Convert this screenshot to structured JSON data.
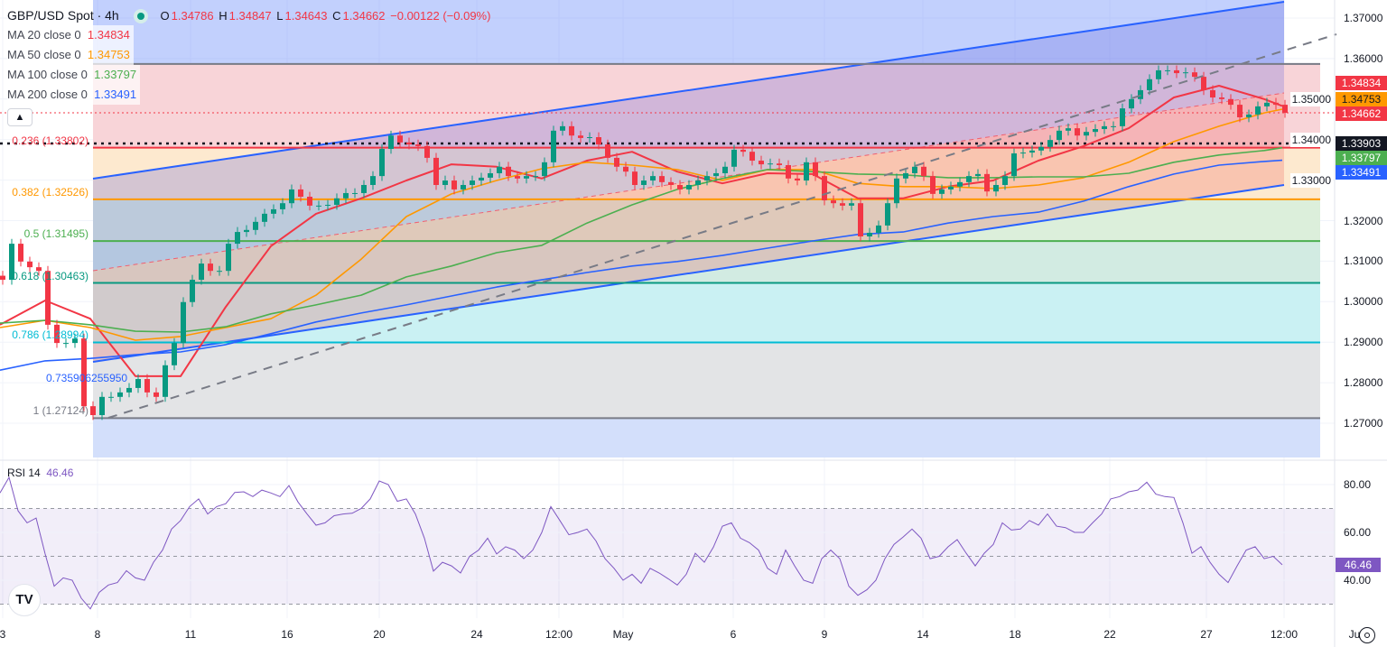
{
  "header": {
    "symbol": "GBP/USD Spot · 4h",
    "status_color": "#089981",
    "open_label": "O",
    "open": "1.34786",
    "high_label": "H",
    "high": "1.34847",
    "low_label": "L",
    "low": "1.34643",
    "close_label": "C",
    "close": "1.34662",
    "change": "−0.00122 (−0.09%)",
    "collapse_icon": "chevron-up-icon"
  },
  "indicators": [
    {
      "label": "MA 20 close 0",
      "value": "1.34834",
      "color": "#f23645"
    },
    {
      "label": "MA 50 close 0",
      "value": "1.34753",
      "color": "#ff9800"
    },
    {
      "label": "MA 100 close 0",
      "value": "1.33797",
      "color": "#4caf50"
    },
    {
      "label": "MA 200 close 0",
      "value": "1.33491",
      "color": "#2962ff"
    }
  ],
  "fib_levels": [
    {
      "ratio": 0,
      "price": 1.35866,
      "label": "",
      "color": "#787b86",
      "fill": "#f8d4d8"
    },
    {
      "ratio": 0.236,
      "price": 1.33802,
      "label": "0.236 (1.33802)",
      "color": "#f23645",
      "fill": "#fde9cf"
    },
    {
      "ratio": 0.382,
      "price": 1.32526,
      "label": "0.382 (1.32526)",
      "color": "#ff9800",
      "fill": "#dcefdb"
    },
    {
      "ratio": 0.5,
      "price": 1.31495,
      "label": "0.5 (1.31495)",
      "color": "#4caf50",
      "fill": "#d2ebe2"
    },
    {
      "ratio": 0.618,
      "price": 1.30463,
      "label": "0.618 (1.30463)",
      "color": "#089981",
      "fill": "#caf1f3"
    },
    {
      "ratio": 0.786,
      "price": 1.28994,
      "label": "0.786 (1.28994)",
      "color": "#00bcd4",
      "fill": "#e3e4e6"
    },
    {
      "ratio": 1,
      "price": 1.27124,
      "label": "1 (1.27124)",
      "color": "#787b86",
      "fill": "#d3dffb"
    }
  ],
  "fib_extra_label": {
    "text": "0.735906255950",
    "color": "#2962ff"
  },
  "colors": {
    "up": "#089981",
    "down": "#f23645",
    "rsi": "#7e57c2",
    "channel": "#2962ff"
  },
  "price_tags": [
    {
      "value": "1.34834",
      "price": 1.34834,
      "color": "#f23645",
      "text_color": "#ffffff"
    },
    {
      "value": "1.34753",
      "price": 1.34753,
      "color": "#ff9800",
      "text_color": "#131722"
    },
    {
      "value": "1.34662",
      "price": 1.34662,
      "color": "#f23645",
      "text_color": "#ffffff"
    },
    {
      "value": "1.33903",
      "price": 1.33903,
      "color": "#131722",
      "text_color": "#ffffff"
    },
    {
      "value": "1.33797",
      "price": 1.33797,
      "color": "#4caf50",
      "text_color": "#ffffff"
    },
    {
      "value": "1.33491",
      "price": 1.33491,
      "color": "#2962ff",
      "text_color": "#ffffff"
    }
  ],
  "rsi": {
    "label": "RSI 14",
    "value": "46.46",
    "ticks": [
      "80.00",
      "60.00",
      "40.00"
    ]
  },
  "chart_data": [
    {
      "type": "candlestick",
      "title": "GBP/USD Spot · 4h",
      "ylim": [
        1.2625,
        1.3745
      ],
      "y_ticks": [
        "1.37000",
        "1.36000",
        "1.35000",
        "1.34000",
        "1.33000",
        "1.32000",
        "1.31000",
        "1.30000",
        "1.29000",
        "1.28000",
        "1.27000"
      ],
      "x_ticks": [
        "3",
        "8",
        "11",
        "16",
        "20",
        "24",
        "12:00",
        "May",
        "6",
        "9",
        "14",
        "18",
        "22",
        "27",
        "12:00",
        "Ju"
      ],
      "grid": true,
      "close": [
        1.3054,
        1.3143,
        1.3099,
        1.3085,
        1.3076,
        1.2943,
        1.2898,
        1.2898,
        1.2909,
        1.2742,
        1.272,
        1.2765,
        1.2765,
        1.2776,
        1.2787,
        1.2809,
        1.2776,
        1.2765,
        1.2843,
        1.2898,
        1.2999,
        1.3054,
        1.3094,
        1.3076,
        1.3076,
        1.3143,
        1.3172,
        1.3177,
        1.3197,
        1.3217,
        1.3228,
        1.3243,
        1.3277,
        1.3259,
        1.3237,
        1.3237,
        1.3239,
        1.3255,
        1.3268,
        1.3268,
        1.3288,
        1.331,
        1.3377,
        1.341,
        1.3393,
        1.3388,
        1.3384,
        1.3355,
        1.3288,
        1.3299,
        1.3277,
        1.3288,
        1.3299,
        1.3306,
        1.3317,
        1.3333,
        1.331,
        1.3304,
        1.331,
        1.331,
        1.3344,
        1.3422,
        1.3433,
        1.341,
        1.3404,
        1.3406,
        1.3388,
        1.3355,
        1.3333,
        1.3321,
        1.3288,
        1.3299,
        1.331,
        1.3295,
        1.3288,
        1.3277,
        1.3288,
        1.3299,
        1.331,
        1.3317,
        1.3333,
        1.3375,
        1.337,
        1.3348,
        1.3339,
        1.3341,
        1.3337,
        1.3304,
        1.3299,
        1.3344,
        1.331,
        1.325,
        1.3243,
        1.3237,
        1.3243,
        1.3161,
        1.317,
        1.3188,
        1.3243,
        1.3304,
        1.3317,
        1.3333,
        1.331,
        1.3266,
        1.3277,
        1.3284,
        1.3295,
        1.331,
        1.3315,
        1.3272,
        1.3288,
        1.331,
        1.3366,
        1.3368,
        1.3373,
        1.3382,
        1.3399,
        1.3422,
        1.3428,
        1.341,
        1.3419,
        1.3426,
        1.3433,
        1.3433,
        1.3477,
        1.35,
        1.3522,
        1.3549,
        1.3571,
        1.3571,
        1.3564,
        1.3566,
        1.3555,
        1.3522,
        1.3504,
        1.35,
        1.3486,
        1.3455,
        1.3462,
        1.3482,
        1.3491,
        1.3486,
        1.3466
      ],
      "series": [
        {
          "name": "MA 20 close 0",
          "color": "#f23645",
          "values": [
            1.2943,
            1.3003,
            1.2958,
            1.2816,
            1.2816,
            1.2987,
            1.3137,
            1.3217,
            1.3255,
            1.3299,
            1.3339,
            1.3333,
            1.3304,
            1.3348,
            1.337,
            1.3321,
            1.3292,
            1.3317,
            1.3315,
            1.3255,
            1.3255,
            1.3284,
            1.3299,
            1.3348,
            1.3384,
            1.3428,
            1.3504,
            1.3533,
            1.35,
            1.3483
          ]
        },
        {
          "name": "MA 50 close 0",
          "color": "#ff9800",
          "values": [
            1.2936,
            1.2954,
            1.2936,
            1.2905,
            1.2914,
            1.2936,
            1.2958,
            1.3016,
            1.3105,
            1.321,
            1.3266,
            1.3299,
            1.3328,
            1.3344,
            1.3337,
            1.3326,
            1.3299,
            1.3326,
            1.3326,
            1.3292,
            1.3284,
            1.3284,
            1.3279,
            1.3288,
            1.3306,
            1.3344,
            1.3395,
            1.3433,
            1.3466,
            1.3475
          ]
        },
        {
          "name": "MA 100 close 0",
          "color": "#4caf50",
          "values": [
            1.2947,
            1.2954,
            1.2943,
            1.2927,
            1.2925,
            1.2938,
            1.297,
            1.2992,
            1.3016,
            1.3061,
            1.3088,
            1.3121,
            1.3139,
            1.3194,
            1.3239,
            1.3277,
            1.3304,
            1.3326,
            1.3321,
            1.3315,
            1.3313,
            1.3306,
            1.3306,
            1.3308,
            1.3308,
            1.3317,
            1.3344,
            1.3362,
            1.3373,
            1.338
          ]
        },
        {
          "name": "MA 200 close 0",
          "color": "#2962ff",
          "values": [
            1.2831,
            1.2854,
            1.286,
            1.2869,
            1.2876,
            1.2894,
            1.2921,
            1.295,
            1.2972,
            1.2992,
            1.3014,
            1.3036,
            1.3054,
            1.3072,
            1.3088,
            1.3099,
            1.3114,
            1.3132,
            1.315,
            1.3166,
            1.3172,
            1.3194,
            1.321,
            1.3221,
            1.3248,
            1.3284,
            1.3315,
            1.3337,
            1.3346,
            1.3349
          ]
        }
      ],
      "horizontal_lines": [
        {
          "price": 1.33903,
          "style": "dotted",
          "color": "#131722"
        },
        {
          "price": 1.34662,
          "style": "dotted",
          "color": "#f23645"
        }
      ]
    },
    {
      "type": "line",
      "title": "RSI 14",
      "ylim": [
        20,
        90
      ],
      "y_ticks": [
        "80.00",
        "60.00",
        "40.00"
      ],
      "bands": {
        "upper": 70,
        "middle": 50,
        "lower": 30
      },
      "series": [
        {
          "name": "RSI 14",
          "color": "#7e57c2",
          "values": [
            76.5,
            83,
            69,
            64,
            66,
            51,
            37.5,
            41,
            40,
            32.5,
            28,
            35,
            38,
            39,
            44,
            41,
            40,
            47.5,
            52.6,
            61.4,
            65,
            70.8,
            74,
            67.7,
            70.8,
            72,
            76.7,
            77,
            75,
            77.7,
            76.5,
            75,
            79.6,
            72.7,
            67.7,
            63,
            64,
            67,
            67.7,
            68,
            70,
            74,
            81.5,
            80,
            73,
            74,
            67.7,
            57.6,
            43.8,
            47.5,
            46,
            43,
            50,
            52.6,
            57.6,
            51,
            54,
            52.6,
            49,
            52.6,
            60,
            70.8,
            65,
            59,
            60,
            61.4,
            56.4,
            49,
            45,
            40,
            42.5,
            38.7,
            45,
            43,
            40.6,
            38,
            42.5,
            51.3,
            47.5,
            53.8,
            62.6,
            64,
            57.6,
            55.7,
            52.6,
            45,
            42.5,
            52.6,
            46,
            40,
            38.7,
            49,
            52.6,
            49,
            37.5,
            33.7,
            36,
            40,
            49,
            55,
            58,
            61.4,
            57.6,
            49,
            50,
            54,
            57,
            51.3,
            46,
            51.3,
            55,
            64,
            61,
            61.4,
            65,
            63,
            67.7,
            62.6,
            62,
            60,
            60,
            64,
            67.7,
            74,
            75,
            77,
            77.7,
            81,
            76,
            75,
            74.6,
            64,
            51.3,
            54,
            47.5,
            42.5,
            39,
            46,
            52.6,
            54,
            49,
            50,
            46.46
          ]
        }
      ]
    }
  ]
}
